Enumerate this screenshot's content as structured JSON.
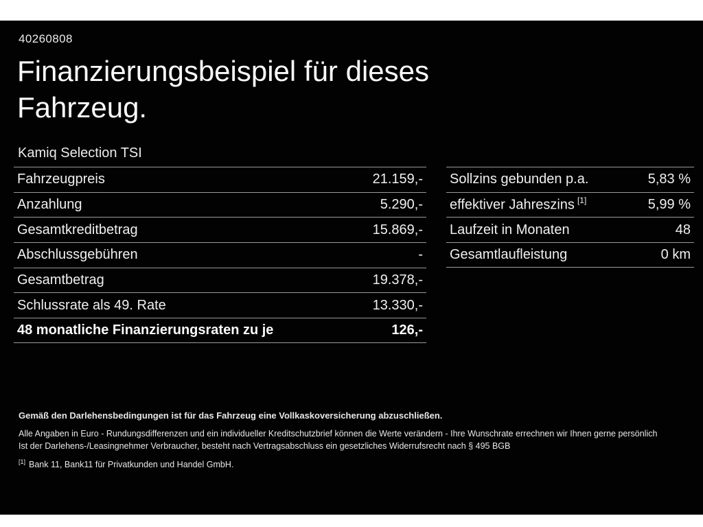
{
  "page": {
    "id_number": "40260808",
    "title_lines": [
      "Finanzierungsbeispiel für dieses",
      "Fahrzeug."
    ],
    "subtitle": "Kamiq Selection TSI"
  },
  "left_table": {
    "rows": [
      {
        "label": "Fahrzeugpreis",
        "value": "21.159,-"
      },
      {
        "label": "Anzahlung",
        "value": "5.290,-"
      },
      {
        "label": "Gesamtkreditbetrag",
        "value": "15.869,-"
      },
      {
        "label": "Abschlussgebühren",
        "value": "-"
      },
      {
        "label": "Gesamtbetrag",
        "value": "19.378,-"
      },
      {
        "label": "Schlussrate als 49. Rate",
        "value": "13.330,-"
      },
      {
        "label": "48 monatliche Finanzierungsraten zu je",
        "value": "126,-"
      }
    ]
  },
  "right_table": {
    "rows": [
      {
        "label": "Sollzins gebunden p.a.",
        "value": "5,83 %"
      },
      {
        "label": "effektiver Jahreszins",
        "sup": "[1]",
        "value": "5,99 %"
      },
      {
        "label": "Laufzeit in Monaten",
        "value": "48"
      },
      {
        "label": "Gesamtlaufleistung",
        "value": "0 km"
      }
    ]
  },
  "footer": {
    "bold_line": "Gemäß den Darlehensbedingungen ist für das Fahrzeug eine Vollkaskoversicherung abzuschließen.",
    "line2": "Alle Angaben in Euro - Rundungsdifferenzen und ein individueller Kreditschutzbrief können die Werte verändern - Ihre Wunschrate errechnen wir Ihnen gerne persönlich",
    "line3": "Ist der Darlehens-/Leasingnehmer Verbraucher, besteht nach Vertragsabschluss ein gesetzliches Widerrufsrecht nach § 495 BGB",
    "footnote_marker": "[1]",
    "footnote_text": "Bank 11, Bank11 für Privatkunden und Handel GmbH."
  },
  "colors": {
    "background": "#000000",
    "text": "#f2f2f2",
    "divider": "#9b9b9b"
  }
}
